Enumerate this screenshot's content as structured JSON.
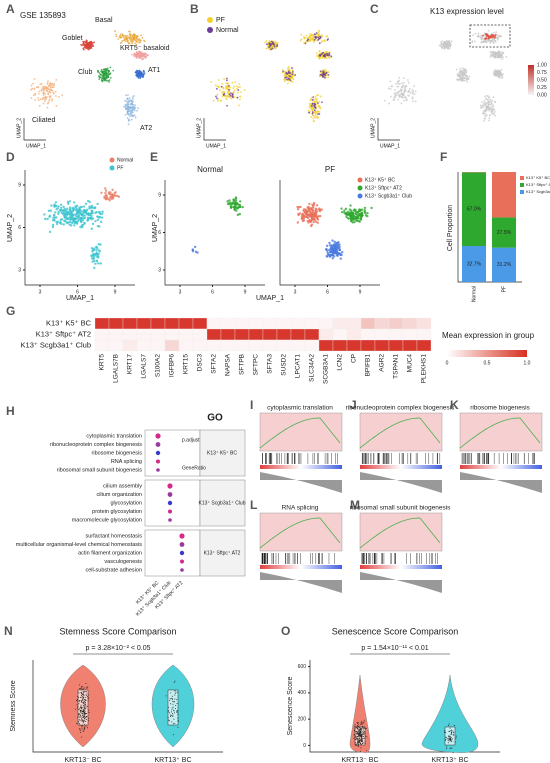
{
  "panels": {
    "A": {
      "label": "A",
      "title": "GSE 135893",
      "clusters": [
        "Basal",
        "Goblet",
        "KRT5⁻ basaloid",
        "AT1",
        "Club",
        "Ciliated",
        "AT2"
      ],
      "colors": [
        "#e8a838",
        "#d9443a",
        "#f0a0a0",
        "#3a6fd0",
        "#2e9e3e",
        "#f3b07c",
        "#8fb8e0"
      ],
      "xlabel": "UMAP_1",
      "ylabel": "UMAP_2"
    },
    "B": {
      "label": "B",
      "legend": [
        "PF",
        "Normal"
      ],
      "colors": [
        "#f2d030",
        "#6a3d9a"
      ],
      "xlabel": "UMAP_1",
      "ylabel": "UMAP_2"
    },
    "C": {
      "label": "C",
      "title": "K13 expression level",
      "ticks": [
        {
          "value": 1,
          "label": "1.00"
        },
        {
          "value": 0.75,
          "label": "0.75"
        },
        {
          "value": 0.5,
          "label": "0.50"
        },
        {
          "value": 0.25,
          "label": "0.25"
        },
        {
          "value": 0,
          "label": "0.00"
        }
      ],
      "xlabel": "UMAP_1",
      "ylabel": "UMAP_2"
    },
    "D": {
      "label": "D",
      "legend": [
        "Normal",
        "PF"
      ],
      "colors": [
        "#e8806a",
        "#3cc4d0"
      ],
      "xticks": [
        3,
        6,
        9
      ],
      "yticks": [
        3,
        6,
        9
      ],
      "xlabel": "UMAP_1",
      "ylabel": "UMAP_2"
    },
    "E": {
      "label": "E",
      "subtitles": [
        "Normal",
        "PF"
      ],
      "legend": [
        "K13⁺ K5⁺ BC",
        "K13⁺ Sftpc⁺ AT2",
        "K13⁺ Scgb3a1⁺ Club"
      ],
      "colors": [
        "#e8705a",
        "#2ea82e",
        "#4a7ae0"
      ],
      "xticks": [
        3,
        6,
        9
      ],
      "yticks": [
        3,
        6,
        9
      ],
      "xlabel": "UMAP_1",
      "ylabel": "UMAP_2"
    },
    "F": {
      "label": "F",
      "type": "bar",
      "ylabel": "Cell Proportion",
      "categories": [
        "Normal",
        "PF"
      ],
      "series": [
        {
          "name": "K13⁺ Scgb3a1⁺ Club",
          "color": "#4a9ae8",
          "values": [
            32.7,
            31.2
          ],
          "value_labels": [
            "32.7%",
            "31.2%"
          ]
        },
        {
          "name": "K13⁺ Sftpc⁺ AT2",
          "color": "#2ea82e",
          "values": [
            67.0,
            27.5
          ],
          "value_labels": [
            "67.0%",
            "27.5%"
          ]
        },
        {
          "name": "K13⁺ K5⁺ BC",
          "color": "#e8705a",
          "values": [
            0.3,
            41.3
          ]
        }
      ],
      "ylim": [
        0,
        100
      ]
    },
    "G": {
      "label": "G",
      "rows": [
        "K13⁺ K5⁺ BC",
        "K13⁺ Sftpc⁺ AT2",
        "K13⁺ Scgb3a1⁺ Club"
      ],
      "genes": [
        "KRT5",
        "LGALS7B",
        "KRT17",
        "LGALS7",
        "S100A2",
        "IGFBP6",
        "KRT15",
        "DSC3",
        "SFTA2",
        "NAPSA",
        "SFTPB",
        "SFTPC",
        "SFTA3",
        "SUSD2",
        "LPCAT1",
        "SLC34A2",
        "SCGB3A1",
        "LCN2",
        "CP",
        "BPIFB1",
        "AGR2",
        "TSPAN1",
        "MUC4",
        "PLEKHS1"
      ],
      "values": [
        [
          1,
          1,
          1,
          1,
          1,
          1,
          1,
          1,
          0.05,
          0.05,
          0.05,
          0.05,
          0.05,
          0.05,
          0.05,
          0.05,
          0.05,
          0.1,
          0.1,
          0.3,
          0.2,
          0.25,
          0.2,
          0.15
        ],
        [
          0.05,
          0.05,
          0.05,
          0.05,
          0.05,
          0.05,
          0.05,
          0.05,
          1,
          1,
          1,
          1,
          1,
          1,
          1,
          1,
          0.1,
          0.05,
          0.1,
          0.05,
          0.05,
          0.05,
          0.05,
          0.05
        ],
        [
          0.05,
          0.05,
          0.1,
          0.05,
          0.05,
          0.2,
          0.05,
          0.05,
          0.05,
          0.05,
          0.05,
          0.05,
          0.05,
          0.05,
          0.05,
          0.05,
          1,
          1,
          1,
          1,
          1,
          1,
          1,
          1
        ]
      ],
      "legend_title": "Mean expression in group",
      "ticks": [
        0,
        0.5,
        {
          "value": 1,
          "label": "1.0"
        }
      ]
    },
    "H": {
      "label": "H",
      "title": "GO",
      "groups": [
        {
          "name": "K13⁺ K5⁺ BC",
          "terms": [
            "cytoplasmic translation",
            "ribonucleoprotein complex biogenesis",
            "ribosome biogenesis",
            "RNA splicing",
            "ribosomal small subunit biogenesis"
          ]
        },
        {
          "name": "K13⁺ Scgb3a1⁺ Club",
          "terms": [
            "cilium assembly",
            "cilium organization",
            "glycosylation",
            "protein glycosylation",
            "macromolecule glycosylation"
          ]
        },
        {
          "name": "K13⁺ Sftpc⁺ AT2",
          "terms": [
            "surfactant homeostasis",
            "multicellular organismal-level chemical homeostasis",
            "actin filament organization",
            "vasculogenesis",
            "cell-substrate adhesion"
          ]
        }
      ],
      "columns": [
        "K13⁺ K5⁺ BC",
        "K13⁺ Scgb3a1⁺ Club",
        "K13⁺ Sftpc⁺ AT2"
      ],
      "legend": [
        "p.adjust",
        "GeneRatio"
      ]
    },
    "gsea": [
      {
        "label": "I",
        "title": "cytoplasmic translation"
      },
      {
        "label": "J",
        "title": "ribonucleoprotein complex biogenesis"
      },
      {
        "label": "K",
        "title": "ribosome biogenesis"
      },
      {
        "label": "L",
        "title": "RNA splicing"
      },
      {
        "label": "M",
        "title": "ribosomal small subunit biogenesis"
      }
    ],
    "N": {
      "label": "N",
      "title": "Stemness Score Comparison",
      "p": "p = 3.28×10⁻² < 0.05",
      "ylabel": "Stemness Score",
      "categories": [
        "KRT13⁻ BC",
        "KRT13⁺ BC"
      ]
    },
    "O": {
      "label": "O",
      "title": "Senescence Score Comparison",
      "p": "p = 1.54×10⁻¹¹ < 0.01",
      "ylabel": "Senescence Score",
      "categories": [
        "KRT13⁻ BC",
        "KRT13⁺ BC"
      ],
      "ylim": [
        -50,
        650
      ],
      "yticks": [
        0,
        200,
        400,
        600
      ]
    }
  }
}
